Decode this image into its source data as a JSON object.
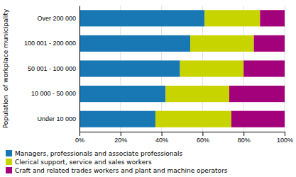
{
  "chart_data": {
    "type": "bar",
    "orientation": "horizontal",
    "stacked": true,
    "categories": [
      "Over 200 000",
      "100 001 - 200 000",
      "50 001 - 100 000",
      "10 000 - 50 000",
      "Under 10 000"
    ],
    "series": [
      {
        "name": "Managers, professionals and associate professionals",
        "color": "#1878b4",
        "values": [
          61,
          54,
          49,
          42,
          37
        ]
      },
      {
        "name": "Clerical support, service and sales workers",
        "color": "#c8d400",
        "values": [
          27,
          31,
          31,
          31,
          37
        ]
      },
      {
        "name": "Craft and related trades workers and plant and machine operators",
        "color": "#a3007c",
        "values": [
          12,
          15,
          20,
          27,
          26
        ]
      }
    ],
    "ylabel": "Population  of workplace municipality",
    "xlim": [
      0,
      100
    ],
    "xticks": [
      {
        "value": 0,
        "label": "0%"
      },
      {
        "value": 20,
        "label": "20%"
      },
      {
        "value": 40,
        "label": "40%"
      },
      {
        "value": 60,
        "label": "60%"
      },
      {
        "value": 80,
        "label": "80%"
      },
      {
        "value": 100,
        "label": "100%"
      }
    ],
    "grid": true
  }
}
